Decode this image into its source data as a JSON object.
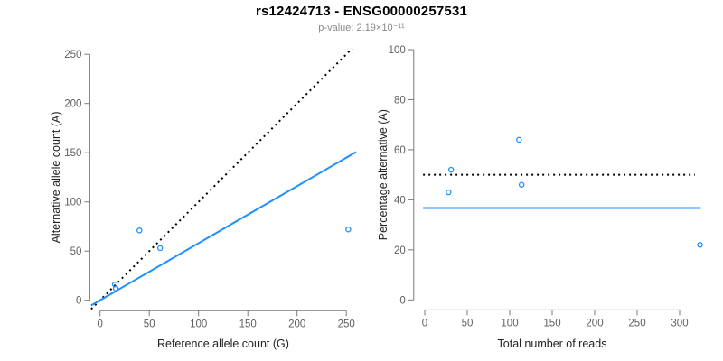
{
  "header": {
    "title": "rs12424713 - ENSG00000257531",
    "subtitle": "p-value: 2.19×10⁻¹¹"
  },
  "colors": {
    "point": "#1E90FF",
    "fit_line": "#1E90FF",
    "reference_line": "#000000",
    "axis_line": "#7a7a7a",
    "tick_label": "#5f5f5f",
    "axis_title": "#222222",
    "title": "#000000",
    "subtitle": "#8a8a8a"
  },
  "chart_data": [
    {
      "name": "allele-count-scatter",
      "type": "scatter",
      "xlabel": "Reference allele count (G)",
      "ylabel": "Alternative allele count (A)",
      "xlim": [
        0,
        250
      ],
      "ylim": [
        0,
        250
      ],
      "xticks": [
        0,
        50,
        100,
        150,
        200,
        250
      ],
      "yticks": [
        0,
        50,
        100,
        150,
        200,
        250
      ],
      "points": [
        {
          "x": 15,
          "y": 16
        },
        {
          "x": 16,
          "y": 12
        },
        {
          "x": 40,
          "y": 71
        },
        {
          "x": 61,
          "y": 53
        },
        {
          "x": 252,
          "y": 72
        }
      ],
      "lines": [
        {
          "name": "identity-line",
          "style": "dotted",
          "color": "#000000",
          "slope": 1,
          "intercept": 0,
          "x_range": [
            -9,
            256
          ]
        },
        {
          "name": "fit-line",
          "style": "solid",
          "color": "#1E90FF",
          "slope": 0.58,
          "intercept": 0,
          "x_range": [
            -9,
            260
          ]
        }
      ]
    },
    {
      "name": "percentage-alternative-scatter",
      "type": "scatter",
      "xlabel": "Total number of reads",
      "ylabel": "Percentage alternative (A)",
      "xlim": [
        0,
        325
      ],
      "ylim": [
        0,
        100
      ],
      "xticks": [
        0,
        50,
        100,
        150,
        200,
        250,
        300
      ],
      "yticks": [
        0,
        20,
        40,
        60,
        80,
        100
      ],
      "points": [
        {
          "x": 31,
          "y": 52
        },
        {
          "x": 28,
          "y": 43
        },
        {
          "x": 111,
          "y": 64
        },
        {
          "x": 114,
          "y": 46
        },
        {
          "x": 324,
          "y": 22
        }
      ],
      "lines": [
        {
          "name": "fifty-percent-line",
          "style": "dotted",
          "color": "#000000",
          "slope": 0,
          "intercept": 50,
          "x_range": [
            -2,
            318
          ]
        },
        {
          "name": "mean-percentage-line",
          "style": "solid",
          "color": "#1E90FF",
          "slope": 0,
          "intercept": 36.7,
          "x_range": [
            -2,
            325
          ]
        }
      ]
    }
  ]
}
